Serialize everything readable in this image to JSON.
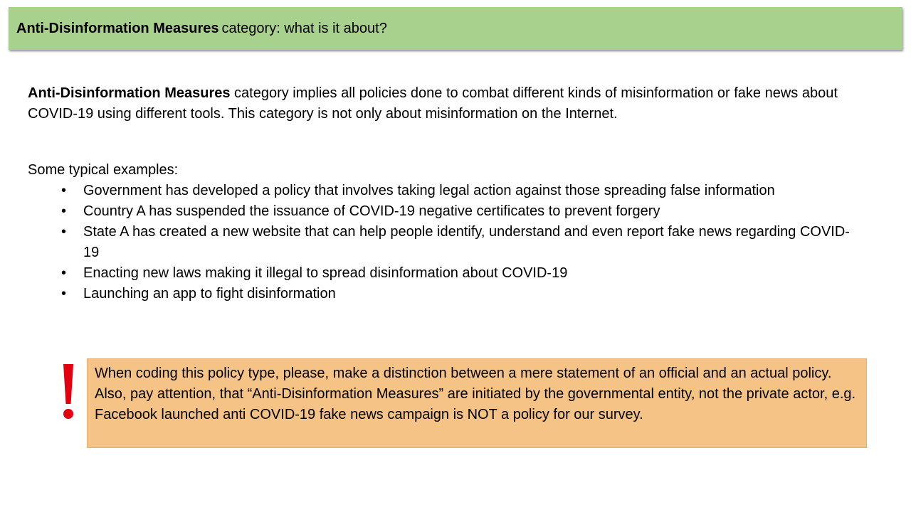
{
  "header": {
    "title_bold": "Anti-Disinformation Measures",
    "title_rest": "category: what is it about?"
  },
  "intro": {
    "bold": "Anti-Disinformation Measures",
    "text": " category implies all policies done to combat different kinds of misinformation or fake news about COVID-19 using different tools. This category is not only about misinformation on the Internet."
  },
  "examples": {
    "heading": "Some typical examples:",
    "bullet": "•",
    "items": [
      "Government has developed a policy that involves taking legal action against those spreading false information",
      "Country A has suspended the issuance of COVID-19 negative certificates to prevent forgery",
      "State A has created a new website that can help people identify, understand and even report fake news regarding COVID-19",
      "Enacting new laws making it illegal to spread disinformation about COVID-19",
      "Launching an app to fight disinformation"
    ]
  },
  "note": {
    "icon": "exclamation-icon",
    "accent_color": "#e3000f",
    "text": "When coding this policy type, please, make a distinction between a mere statement of an official and an actual policy. Also, pay attention, that “Anti-Disinformation Measures” are initiated by the governmental entity, not the private actor, e.g. Facebook launched anti COVID-19 fake news campaign is NOT a policy for our survey."
  },
  "colors": {
    "title_bar": "#a9d18e",
    "note_box": "#f6c386"
  }
}
